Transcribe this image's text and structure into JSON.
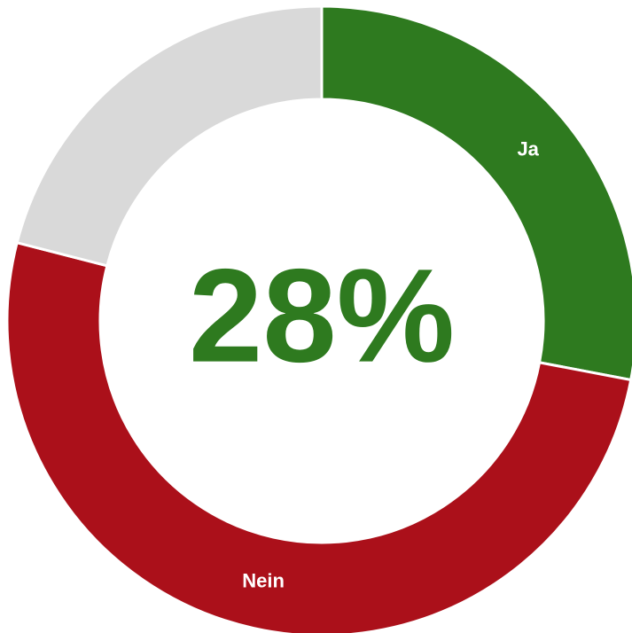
{
  "chart_data": {
    "type": "donut",
    "categories": [
      "Ja",
      "Nein",
      null
    ],
    "values": [
      28,
      51,
      21
    ],
    "colors": [
      "#2e7a1f",
      "#ab101a",
      "#d9d9d9"
    ],
    "center_label": "28%",
    "center_color": "#2e7a1f"
  }
}
